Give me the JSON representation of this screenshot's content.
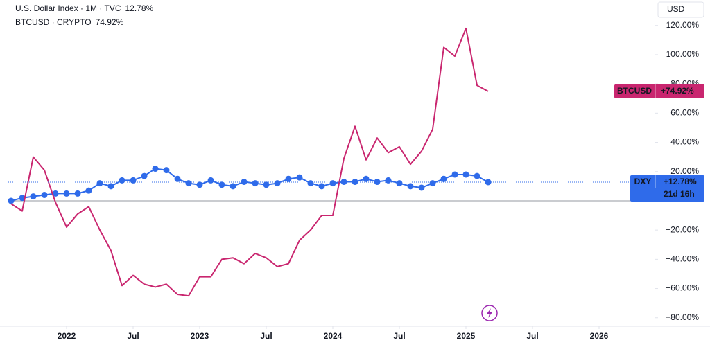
{
  "chart_data": {
    "type": "line",
    "currency": "USD",
    "countdown": "21d 16h",
    "x": [
      "2021-08",
      "2021-09",
      "2021-10",
      "2021-11",
      "2021-12",
      "2022-01",
      "2022-02",
      "2022-03",
      "2022-04",
      "2022-05",
      "2022-06",
      "2022-07",
      "2022-08",
      "2022-09",
      "2022-10",
      "2022-11",
      "2022-12",
      "2023-01",
      "2023-02",
      "2023-03",
      "2023-04",
      "2023-05",
      "2023-06",
      "2023-07",
      "2023-08",
      "2023-09",
      "2023-10",
      "2023-11",
      "2023-12",
      "2024-01",
      "2024-02",
      "2024-03",
      "2024-04",
      "2024-05",
      "2024-06",
      "2024-07",
      "2024-08",
      "2024-09",
      "2024-10",
      "2024-11",
      "2024-12",
      "2025-01",
      "2025-02",
      "2025-03"
    ],
    "series": [
      {
        "name": "DXY",
        "title": "U.S. Dollar Index · 1M · TVC",
        "last_label": "12.78%",
        "tag_label": "+12.78%",
        "color": "#2f6bea",
        "markers": true,
        "values": [
          0,
          2,
          3,
          4,
          5,
          5,
          5,
          7,
          12,
          10,
          14,
          14,
          17,
          22,
          21,
          15,
          12,
          11,
          14,
          11,
          10,
          13,
          12,
          11,
          12,
          15,
          16,
          12,
          10,
          12,
          13,
          13,
          15,
          13,
          14,
          12,
          10,
          9,
          12,
          15,
          18,
          18,
          17,
          12.78
        ]
      },
      {
        "name": "BTCUSD",
        "title": "BTCUSD · CRYPTO",
        "last_label": "74.92%",
        "tag_label": "+74.92%",
        "color": "#c9266f",
        "markers": false,
        "values": [
          -2,
          -7,
          30,
          21,
          -1,
          -18,
          -9,
          -4,
          -20,
          -34,
          -58,
          -51,
          -57,
          -59,
          -57,
          -64,
          -65,
          -52,
          -52,
          -40,
          -39,
          -43,
          -36,
          -39,
          -45,
          -43,
          -27,
          -20,
          -10,
          -10,
          29,
          51,
          28,
          43,
          33,
          37,
          25,
          34,
          49,
          105,
          99,
          118,
          79,
          74.92
        ]
      }
    ],
    "xlim": [
      "2021-08",
      "2026-06"
    ],
    "xticks": [
      {
        "value": "2022-01",
        "label": "2022"
      },
      {
        "value": "2022-07",
        "label": "Jul"
      },
      {
        "value": "2023-01",
        "label": "2023"
      },
      {
        "value": "2023-07",
        "label": "Jul"
      },
      {
        "value": "2024-01",
        "label": "2024"
      },
      {
        "value": "2024-07",
        "label": "Jul"
      },
      {
        "value": "2025-01",
        "label": "2025"
      },
      {
        "value": "2025-07",
        "label": "Jul"
      },
      {
        "value": "2026-01",
        "label": "2026"
      }
    ],
    "ylim": [
      -85.8,
      137.4
    ],
    "yticks": [
      {
        "value": 120,
        "label": "120.00%"
      },
      {
        "value": 100,
        "label": "100.00%"
      },
      {
        "value": 80,
        "label": "80.00%"
      },
      {
        "value": 60,
        "label": "60.00%"
      },
      {
        "value": 40,
        "label": "40.00%"
      },
      {
        "value": 20,
        "label": "20.00%"
      },
      {
        "value": -20,
        "label": "−20.00%"
      },
      {
        "value": -40,
        "label": "−40.00%"
      },
      {
        "value": -60,
        "label": "−60.00%"
      },
      {
        "value": -80,
        "label": "−80.00%"
      }
    ]
  }
}
